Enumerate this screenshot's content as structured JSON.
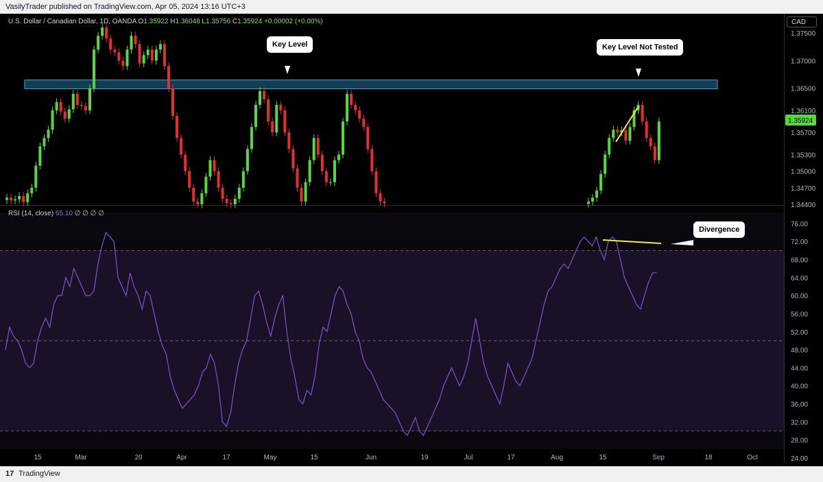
{
  "header": {
    "published": "VasilyTrader published on TradingView.com, Apr 05, 2024 13:16 UTC+3"
  },
  "legend": {
    "symbol": "U.S. Dollar / Canadian Dollar, 1D, OANDA",
    "open_label": "O",
    "open": "1.35922",
    "high_label": "H",
    "high": "1.36048",
    "low_label": "L",
    "low": "1.35756",
    "close_label": "C",
    "close": "1.35924",
    "change": "+0.00002 (+0.00%)"
  },
  "rsi_legend": {
    "label": "RSI (14, close)",
    "value": "65.10",
    "extra": "∅ ∅ ∅ ∅"
  },
  "currency_badge": "CAD",
  "footer": {
    "brand": "TradingView",
    "logo": "17"
  },
  "annotations": {
    "key_level": "Key Level",
    "not_tested": "Key Level Not Tested",
    "divergence": "Divergence"
  },
  "colors": {
    "up": "#56d93c",
    "down": "#e0302f",
    "rsi": "#7e57c2",
    "zone": "#1f4f6b",
    "zone_border": "#3fa7d6",
    "annotation_line": "#f5e94a"
  },
  "chart_data": [
    {
      "type": "candlestick",
      "title": "U.S. Dollar / Canadian Dollar, 1D, OANDA",
      "price_axis_ticks": [
        "1.37500",
        "1.37000",
        "1.36500",
        "1.36100",
        "1.35700",
        "1.35300",
        "1.35000",
        "1.34700",
        "1.34400"
      ],
      "current_price": "1.35924",
      "ylim": [
        1.344,
        1.3775
      ],
      "x_ticks": [
        "15",
        "Mar",
        "20",
        "Apr",
        "17",
        "May",
        "15",
        "Jun",
        "19",
        "Jul",
        "17",
        "Aug",
        "15",
        "Sep",
        "18",
        "Oct"
      ],
      "key_level_zone": [
        1.3649,
        1.3665
      ],
      "closes": [
        1.3452,
        1.3447,
        1.3449,
        1.3455,
        1.3444,
        1.346,
        1.347,
        1.351,
        1.3545,
        1.356,
        1.3575,
        1.361,
        1.3625,
        1.3608,
        1.3595,
        1.3612,
        1.364,
        1.362,
        1.3618,
        1.361,
        1.365,
        1.372,
        1.3745,
        1.376,
        1.374,
        1.372,
        1.3715,
        1.37,
        1.369,
        1.372,
        1.3745,
        1.373,
        1.3695,
        1.371,
        1.372,
        1.37,
        1.372,
        1.373,
        1.369,
        1.365,
        1.36,
        1.356,
        1.353,
        1.35,
        1.347,
        1.3445,
        1.344,
        1.346,
        1.349,
        1.352,
        1.35,
        1.347,
        1.345,
        1.3442,
        1.344,
        1.345,
        1.347,
        1.35,
        1.354,
        1.358,
        1.362,
        1.3645,
        1.363,
        1.359,
        1.357,
        1.362,
        1.361,
        1.357,
        1.354,
        1.3505,
        1.347,
        1.3445,
        1.348,
        1.352,
        1.356,
        1.353,
        1.35,
        1.348,
        1.348,
        1.352,
        1.353,
        1.359,
        1.364,
        1.362,
        1.361,
        1.3595,
        1.358,
        1.354,
        1.35,
        1.346,
        1.3445,
        1.3442
      ],
      "closes_late": [
        1.3445,
        1.3452,
        1.3465,
        1.3495,
        1.353,
        1.356,
        1.3575,
        1.357,
        1.3574,
        1.3555,
        1.358,
        1.361,
        1.362,
        1.359,
        1.356,
        1.3545,
        1.352,
        1.359
      ]
    },
    {
      "type": "line",
      "title": "RSI (14, close)",
      "y_ticks": [
        "76.00",
        "72.00",
        "68.00",
        "64.00",
        "60.00",
        "56.00",
        "52.00",
        "48.00",
        "44.00",
        "40.00",
        "36.00",
        "32.00",
        "28.00",
        "24.00"
      ],
      "ylim": [
        24,
        77.5
      ],
      "bands": [
        30,
        70
      ],
      "midline": 50,
      "values": [
        48,
        53,
        51,
        50,
        48,
        45,
        44,
        45,
        50,
        53,
        55,
        53,
        58,
        60,
        60,
        64,
        62,
        66,
        64,
        62,
        60,
        60,
        61,
        67,
        71,
        74,
        73,
        72,
        64,
        62,
        60,
        65,
        62,
        60,
        57,
        61,
        60,
        56,
        52,
        49,
        47,
        42,
        39,
        37,
        35,
        36,
        37,
        38,
        40,
        43,
        44,
        47,
        45,
        40,
        32,
        31,
        34,
        40,
        45,
        48,
        50,
        55,
        60,
        61,
        58,
        54,
        51,
        55,
        58,
        60,
        52,
        46,
        42,
        37,
        36,
        39,
        38,
        42,
        49,
        53,
        52,
        56,
        60,
        62,
        61,
        58,
        56,
        52,
        50,
        46,
        44,
        43,
        41,
        39,
        37,
        36,
        35,
        34,
        32,
        30,
        29,
        31,
        33,
        30,
        29,
        31,
        33,
        35,
        37,
        40,
        42,
        44,
        42,
        40,
        42,
        45,
        50,
        55,
        50,
        45,
        42,
        40,
        38,
        36,
        40,
        45,
        43,
        41,
        40,
        42,
        44,
        46,
        50,
        54,
        58,
        61,
        62,
        64,
        66,
        67,
        66,
        68,
        70,
        72,
        73,
        72,
        71,
        73,
        70,
        68,
        72,
        73,
        72,
        68,
        64,
        62,
        60,
        58,
        57,
        60,
        63,
        65,
        65.1
      ]
    }
  ]
}
